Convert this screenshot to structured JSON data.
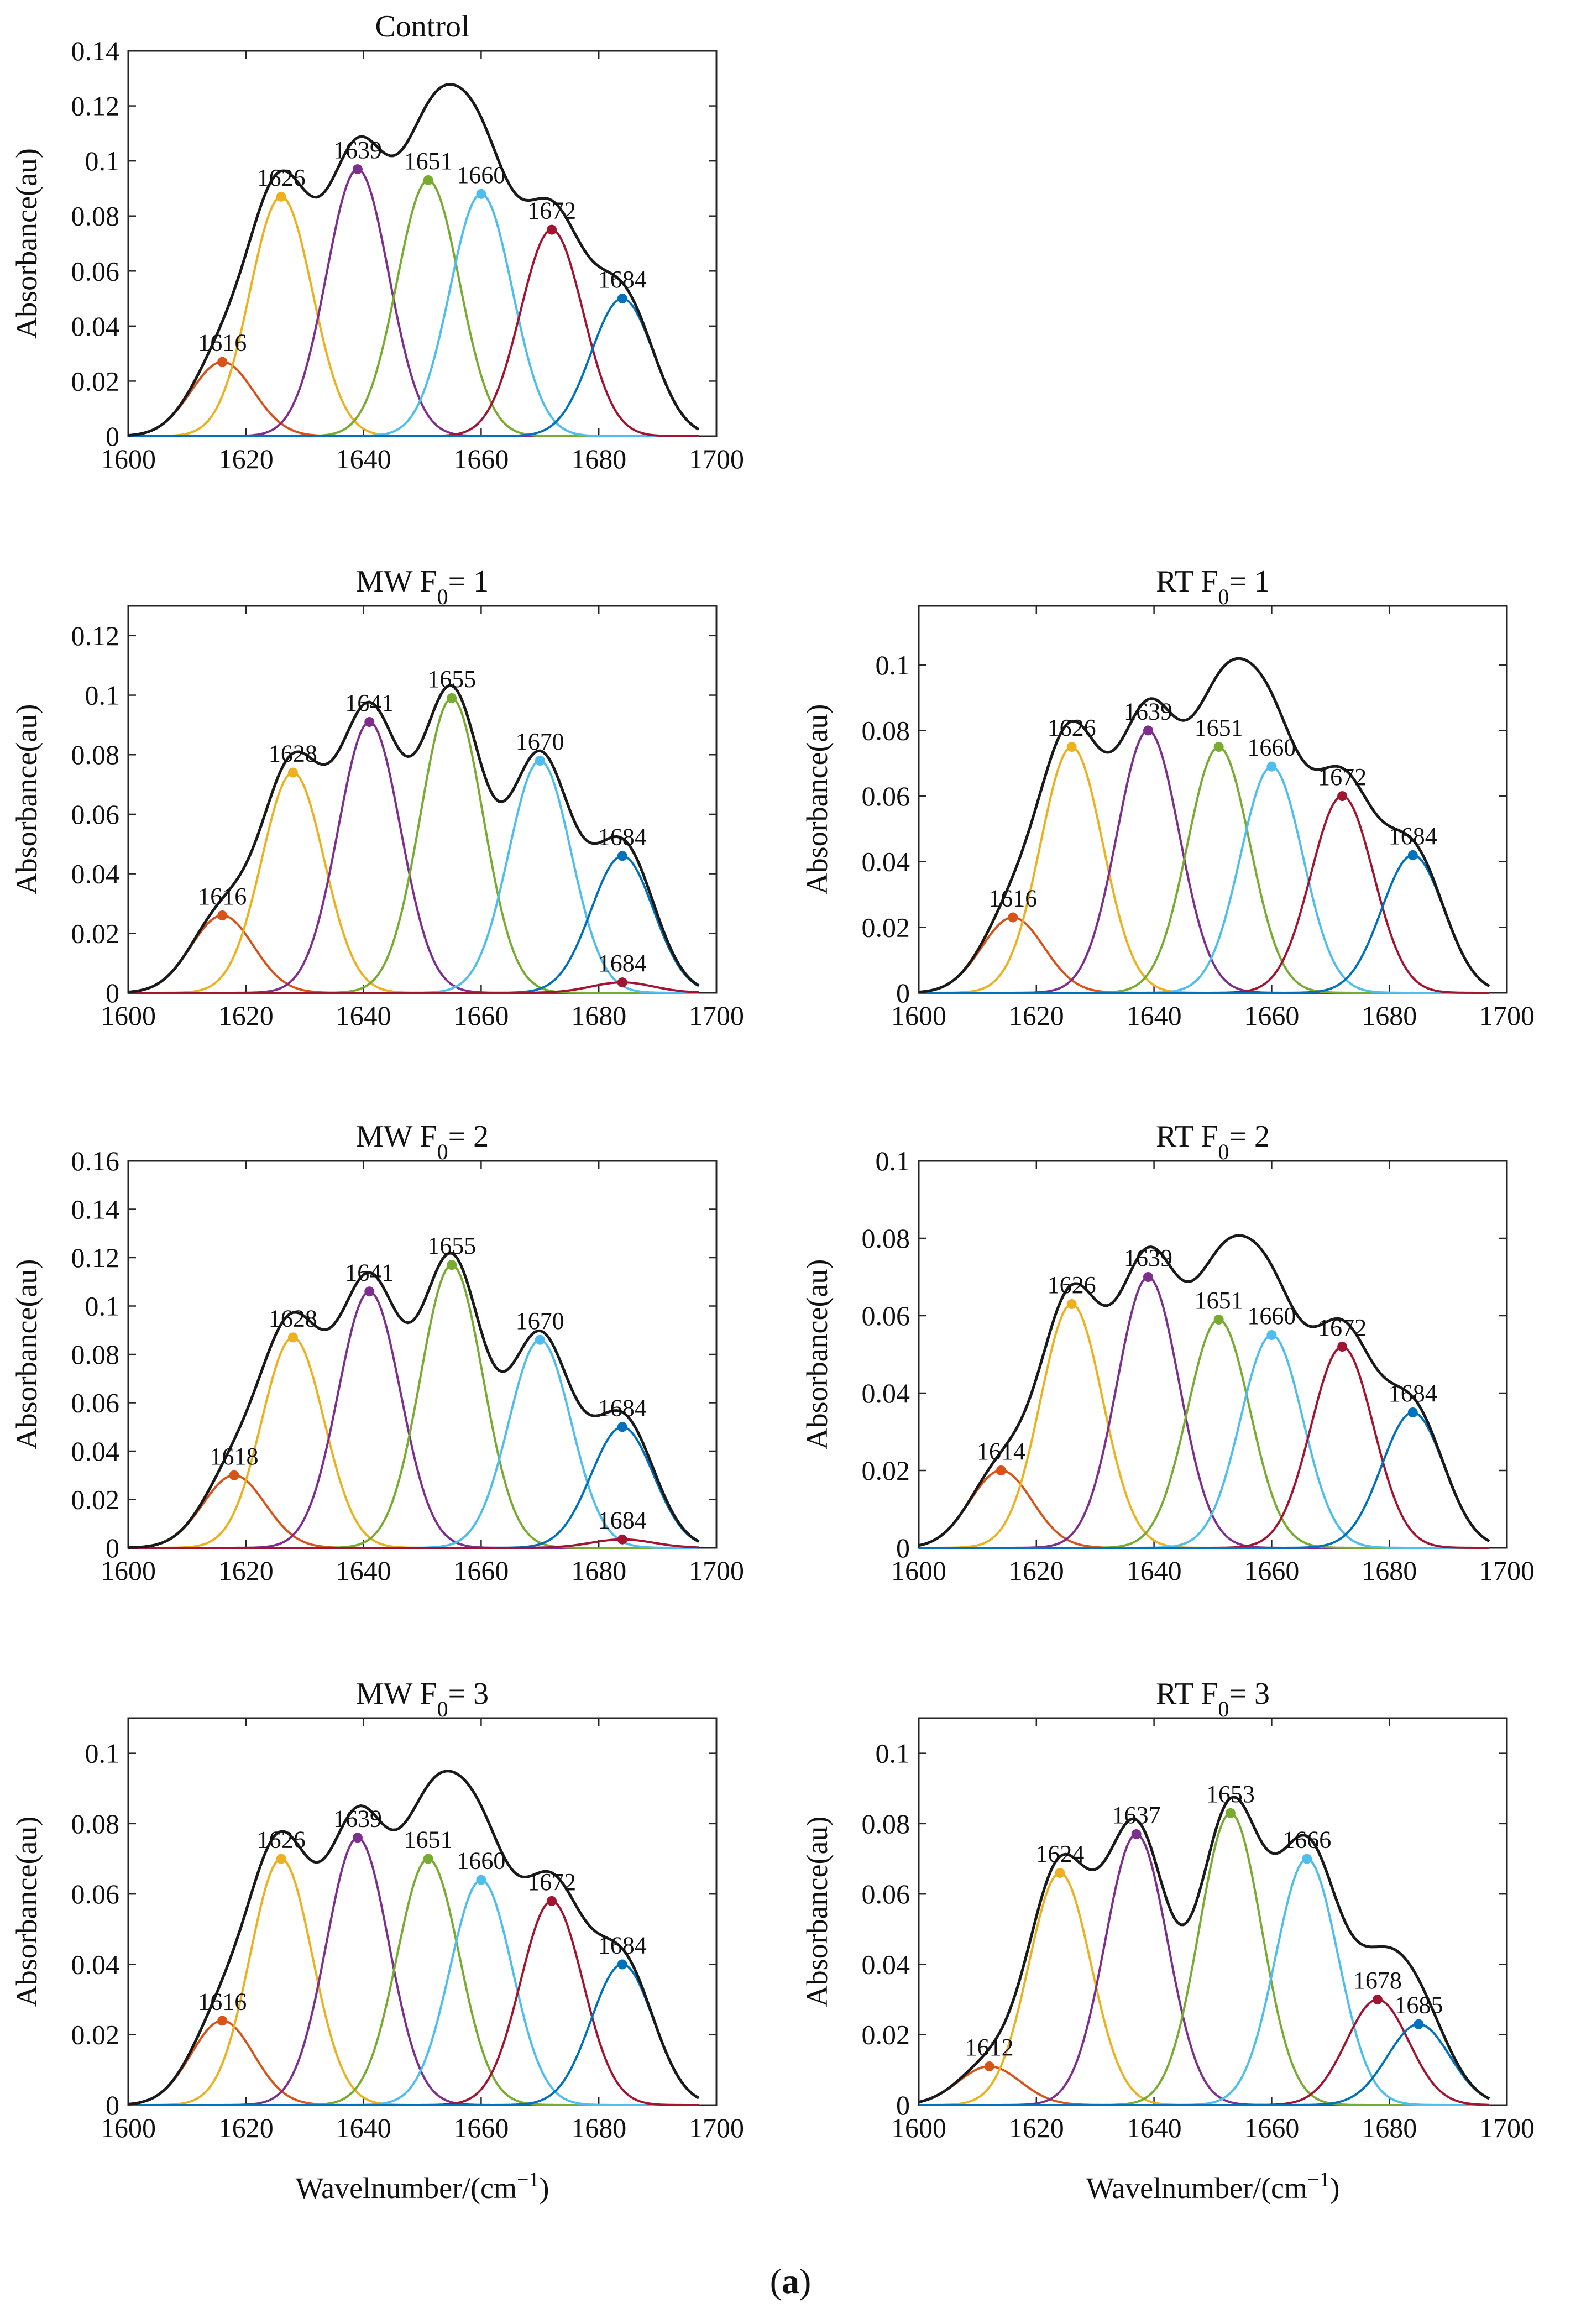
{
  "figure": {
    "caption_open": "(",
    "caption_letter": "a",
    "caption_close": ")",
    "ylabel": "Absorbance(au)",
    "xlabel_prefix": "Wavelnumber/(cm",
    "xlabel_sup": "−1",
    "xlabel_suffix": ")"
  },
  "chart_data": [
    {
      "type": "line",
      "title": "Control",
      "xlabel": "",
      "ylabel": "Absorbance(au)",
      "xlim": [
        1600,
        1700
      ],
      "ylim": [
        0,
        0.14
      ],
      "xticks": [
        "1600",
        "1620",
        "1640",
        "1660",
        "1680",
        "1700"
      ],
      "yticks": [
        "0",
        "0.02",
        "0.04",
        "0.06",
        "0.08",
        "0.1",
        "0.12",
        "0.14"
      ],
      "peaks": [
        {
          "center": 1616,
          "label": "1616",
          "amplitude": 0.027,
          "color": "#D95319"
        },
        {
          "center": 1626,
          "label": "1626",
          "amplitude": 0.087,
          "color": "#EDB120"
        },
        {
          "center": 1639,
          "label": "1639",
          "amplitude": 0.097,
          "color": "#7E2F8E"
        },
        {
          "center": 1651,
          "label": "1651",
          "amplitude": 0.093,
          "color": "#77AC30"
        },
        {
          "center": 1660,
          "label": "1660",
          "amplitude": 0.088,
          "color": "#4DBEEE"
        },
        {
          "center": 1672,
          "label": "1672",
          "amplitude": 0.075,
          "color": "#A2142F"
        },
        {
          "center": 1684,
          "label": "1684",
          "amplitude": 0.05,
          "color": "#0072BD"
        }
      ],
      "envelope": {
        "name": "sum",
        "color": "#1a1a1a"
      }
    },
    {
      "type": "line",
      "title": "MW F0= 1",
      "title_main": "MW F",
      "title_sub": "0",
      "title_rest": "= 1",
      "xlabel": "",
      "ylabel": "Absorbance(au)",
      "xlim": [
        1600,
        1700
      ],
      "ylim": [
        0,
        0.13
      ],
      "xticks": [
        "1600",
        "1620",
        "1640",
        "1660",
        "1680",
        "1700"
      ],
      "yticks": [
        "0",
        "0.02",
        "0.04",
        "0.06",
        "0.08",
        "0.1",
        "0.12"
      ],
      "peaks": [
        {
          "center": 1616,
          "label": "1616",
          "amplitude": 0.026,
          "color": "#D95319"
        },
        {
          "center": 1628,
          "label": "1628",
          "amplitude": 0.074,
          "color": "#EDB120"
        },
        {
          "center": 1641,
          "label": "1641",
          "amplitude": 0.091,
          "color": "#7E2F8E"
        },
        {
          "center": 1655,
          "label": "1655",
          "amplitude": 0.099,
          "color": "#77AC30"
        },
        {
          "center": 1670,
          "label": "1670",
          "amplitude": 0.078,
          "color": "#4DBEEE"
        },
        {
          "center": 1684,
          "label": "1684",
          "amplitude": 0.046,
          "color": "#0072BD"
        },
        {
          "center": 1684,
          "label": "1684",
          "amplitude": 0.0035,
          "color": "#A2142F"
        }
      ],
      "envelope": {
        "name": "sum",
        "color": "#1a1a1a"
      }
    },
    {
      "type": "line",
      "title": "RT F0= 1",
      "title_main": "RT F",
      "title_sub": "0",
      "title_rest": "= 1",
      "xlabel": "",
      "ylabel": "Absorbance(au)",
      "xlim": [
        1600,
        1700
      ],
      "ylim": [
        0,
        0.118
      ],
      "xticks": [
        "1600",
        "1620",
        "1640",
        "1660",
        "1680",
        "1700"
      ],
      "yticks": [
        "0",
        "0.02",
        "0.04",
        "0.06",
        "0.08",
        "0.1"
      ],
      "peaks": [
        {
          "center": 1616,
          "label": "1616",
          "amplitude": 0.023,
          "color": "#D95319"
        },
        {
          "center": 1626,
          "label": "1626",
          "amplitude": 0.075,
          "color": "#EDB120"
        },
        {
          "center": 1639,
          "label": "1639",
          "amplitude": 0.08,
          "color": "#7E2F8E"
        },
        {
          "center": 1651,
          "label": "1651",
          "amplitude": 0.075,
          "color": "#77AC30"
        },
        {
          "center": 1660,
          "label": "1660",
          "amplitude": 0.069,
          "color": "#4DBEEE"
        },
        {
          "center": 1672,
          "label": "1672",
          "amplitude": 0.06,
          "color": "#A2142F"
        },
        {
          "center": 1684,
          "label": "1684",
          "amplitude": 0.042,
          "color": "#0072BD"
        }
      ],
      "envelope": {
        "name": "sum",
        "color": "#1a1a1a"
      }
    },
    {
      "type": "line",
      "title": "MW F0= 2",
      "title_main": "MW F",
      "title_sub": "0",
      "title_rest": "= 2",
      "xlabel": "",
      "ylabel": "Absorbance(au)",
      "xlim": [
        1600,
        1700
      ],
      "ylim": [
        0,
        0.16
      ],
      "xticks": [
        "1600",
        "1620",
        "1640",
        "1660",
        "1680",
        "1700"
      ],
      "yticks": [
        "0",
        "0.02",
        "0.04",
        "0.06",
        "0.08",
        "0.1",
        "0.12",
        "0.14",
        "0.16"
      ],
      "peaks": [
        {
          "center": 1618,
          "label": "1618",
          "amplitude": 0.03,
          "color": "#D95319"
        },
        {
          "center": 1628,
          "label": "1628",
          "amplitude": 0.087,
          "color": "#EDB120"
        },
        {
          "center": 1641,
          "label": "1641",
          "amplitude": 0.106,
          "color": "#7E2F8E"
        },
        {
          "center": 1655,
          "label": "1655",
          "amplitude": 0.117,
          "color": "#77AC30"
        },
        {
          "center": 1670,
          "label": "1670",
          "amplitude": 0.086,
          "color": "#4DBEEE"
        },
        {
          "center": 1684,
          "label": "1684",
          "amplitude": 0.05,
          "color": "#0072BD"
        },
        {
          "center": 1684,
          "label": "1684",
          "amplitude": 0.0035,
          "color": "#A2142F"
        }
      ],
      "envelope": {
        "name": "sum",
        "color": "#1a1a1a"
      }
    },
    {
      "type": "line",
      "title": "RT F0= 2",
      "title_main": "RT F",
      "title_sub": "0",
      "title_rest": "= 2",
      "xlabel": "",
      "ylabel": "Absorbance(au)",
      "xlim": [
        1600,
        1700
      ],
      "ylim": [
        0,
        0.1
      ],
      "xticks": [
        "1600",
        "1620",
        "1640",
        "1660",
        "1680",
        "1700"
      ],
      "yticks": [
        "0",
        "0.02",
        "0.04",
        "0.06",
        "0.08",
        "0.1"
      ],
      "peaks": [
        {
          "center": 1614,
          "label": "1614",
          "amplitude": 0.02,
          "color": "#D95319"
        },
        {
          "center": 1626,
          "label": "1626",
          "amplitude": 0.063,
          "color": "#EDB120"
        },
        {
          "center": 1639,
          "label": "1639",
          "amplitude": 0.07,
          "color": "#7E2F8E"
        },
        {
          "center": 1651,
          "label": "1651",
          "amplitude": 0.059,
          "color": "#77AC30"
        },
        {
          "center": 1660,
          "label": "1660",
          "amplitude": 0.055,
          "color": "#4DBEEE"
        },
        {
          "center": 1672,
          "label": "1672",
          "amplitude": 0.052,
          "color": "#A2142F"
        },
        {
          "center": 1684,
          "label": "1684",
          "amplitude": 0.035,
          "color": "#0072BD"
        }
      ],
      "envelope": {
        "name": "sum",
        "color": "#1a1a1a"
      }
    },
    {
      "type": "line",
      "title": "MW F0= 3",
      "title_main": "MW F",
      "title_sub": "0",
      "title_rest": "= 3",
      "xlabel": "Wavelnumber/(cm−1)",
      "ylabel": "Absorbance(au)",
      "xlim": [
        1600,
        1700
      ],
      "ylim": [
        0,
        0.11
      ],
      "xticks": [
        "1600",
        "1620",
        "1640",
        "1660",
        "1680",
        "1700"
      ],
      "yticks": [
        "0",
        "0.02",
        "0.04",
        "0.06",
        "0.08",
        "0.1"
      ],
      "peaks": [
        {
          "center": 1616,
          "label": "1616",
          "amplitude": 0.024,
          "color": "#D95319"
        },
        {
          "center": 1626,
          "label": "1626",
          "amplitude": 0.07,
          "color": "#EDB120"
        },
        {
          "center": 1639,
          "label": "1639",
          "amplitude": 0.076,
          "color": "#7E2F8E"
        },
        {
          "center": 1651,
          "label": "1651",
          "amplitude": 0.07,
          "color": "#77AC30"
        },
        {
          "center": 1660,
          "label": "1660",
          "amplitude": 0.064,
          "color": "#4DBEEE"
        },
        {
          "center": 1672,
          "label": "1672",
          "amplitude": 0.058,
          "color": "#A2142F"
        },
        {
          "center": 1684,
          "label": "1684",
          "amplitude": 0.04,
          "color": "#0072BD"
        }
      ],
      "envelope": {
        "name": "sum",
        "color": "#1a1a1a"
      }
    },
    {
      "type": "line",
      "title": "RT F0= 3",
      "title_main": "RT F",
      "title_sub": "0",
      "title_rest": "= 3",
      "xlabel": "Wavelnumber/(cm−1)",
      "ylabel": "Absorbance(au)",
      "xlim": [
        1600,
        1700
      ],
      "ylim": [
        0,
        0.11
      ],
      "xticks": [
        "1600",
        "1620",
        "1640",
        "1660",
        "1680",
        "1700"
      ],
      "yticks": [
        "0",
        "0.02",
        "0.04",
        "0.06",
        "0.08",
        "0.1"
      ],
      "peaks": [
        {
          "center": 1612,
          "label": "1612",
          "amplitude": 0.011,
          "color": "#D95319"
        },
        {
          "center": 1624,
          "label": "1624",
          "amplitude": 0.066,
          "color": "#EDB120"
        },
        {
          "center": 1637,
          "label": "1637",
          "amplitude": 0.077,
          "color": "#7E2F8E"
        },
        {
          "center": 1653,
          "label": "1653",
          "amplitude": 0.083,
          "color": "#77AC30"
        },
        {
          "center": 1666,
          "label": "1666",
          "amplitude": 0.07,
          "color": "#4DBEEE"
        },
        {
          "center": 1678,
          "label": "1678",
          "amplitude": 0.03,
          "color": "#A2142F"
        },
        {
          "center": 1685,
          "label": "1685",
          "amplitude": 0.023,
          "color": "#0072BD"
        }
      ],
      "envelope": {
        "name": "sum",
        "color": "#1a1a1a"
      }
    }
  ]
}
